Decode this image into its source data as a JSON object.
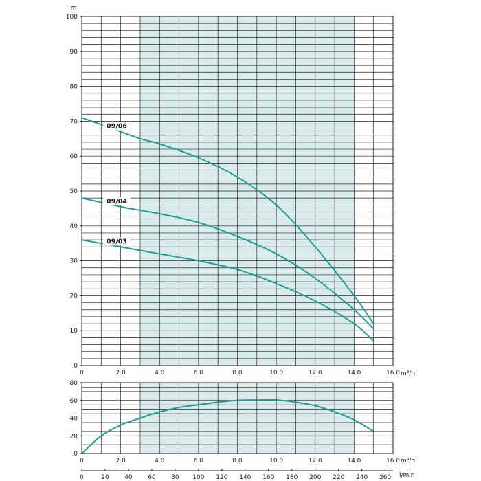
{
  "chart_data": [
    {
      "type": "line",
      "ylabel": "m",
      "xlabel": "m³/h",
      "xlim": [
        0,
        16
      ],
      "ylim": [
        0,
        100
      ],
      "x_ticks": [
        "0",
        "2.0",
        "4.0",
        "6.0",
        "8.0",
        "10.0",
        "12.0",
        "14.0",
        "16.0"
      ],
      "y_ticks": [
        "0",
        "10",
        "20",
        "30",
        "40",
        "50",
        "60",
        "70",
        "80",
        "90",
        "100"
      ],
      "grid": true,
      "shaded_x_range": [
        3,
        14
      ],
      "series": [
        {
          "name": "09/06",
          "x": [
            0,
            2,
            3,
            4,
            6,
            8,
            10,
            12,
            14,
            15
          ],
          "y": [
            71,
            67,
            65,
            63.5,
            59.5,
            54,
            46,
            34,
            20,
            12
          ]
        },
        {
          "name": "09/04",
          "x": [
            0,
            2,
            3,
            4,
            6,
            8,
            10,
            12,
            14,
            15
          ],
          "y": [
            48,
            45.5,
            44.5,
            43.5,
            41,
            37,
            32,
            25,
            16,
            10.5
          ]
        },
        {
          "name": "09/03",
          "x": [
            0,
            2,
            3,
            4,
            6,
            8,
            10,
            12,
            14,
            15
          ],
          "y": [
            36,
            34,
            33,
            32,
            30,
            27.5,
            23.5,
            18.5,
            12,
            7
          ]
        }
      ]
    },
    {
      "type": "line",
      "xlabel": "m³/h",
      "xlim": [
        0,
        16
      ],
      "ylim": [
        0,
        80
      ],
      "x_ticks": [
        "0",
        "2.0",
        "4.0",
        "6.0",
        "8.0",
        "10.0",
        "12.0",
        "14.0",
        "16.0"
      ],
      "y_ticks": [
        "0",
        "20",
        "40",
        "60",
        "80"
      ],
      "grid": true,
      "shaded_x_range": [
        3,
        14
      ],
      "secondary_x_axis": {
        "label": "l/min",
        "ticks": [
          "0",
          "20",
          "40",
          "60",
          "80",
          "100",
          "120",
          "140",
          "160",
          "180",
          "200",
          "220",
          "240",
          "260"
        ]
      },
      "series": [
        {
          "x": [
            0,
            1,
            2,
            3,
            4,
            5,
            6,
            7,
            8,
            9,
            10,
            11,
            12,
            13,
            14,
            15
          ],
          "y": [
            0,
            20,
            32,
            40,
            47,
            52,
            55,
            58,
            60,
            60.5,
            60.5,
            58,
            54,
            47,
            38,
            25
          ]
        }
      ]
    }
  ],
  "colors": {
    "curve": "#1d9e96",
    "shade": "#d9ebea",
    "grid": "#222222"
  }
}
